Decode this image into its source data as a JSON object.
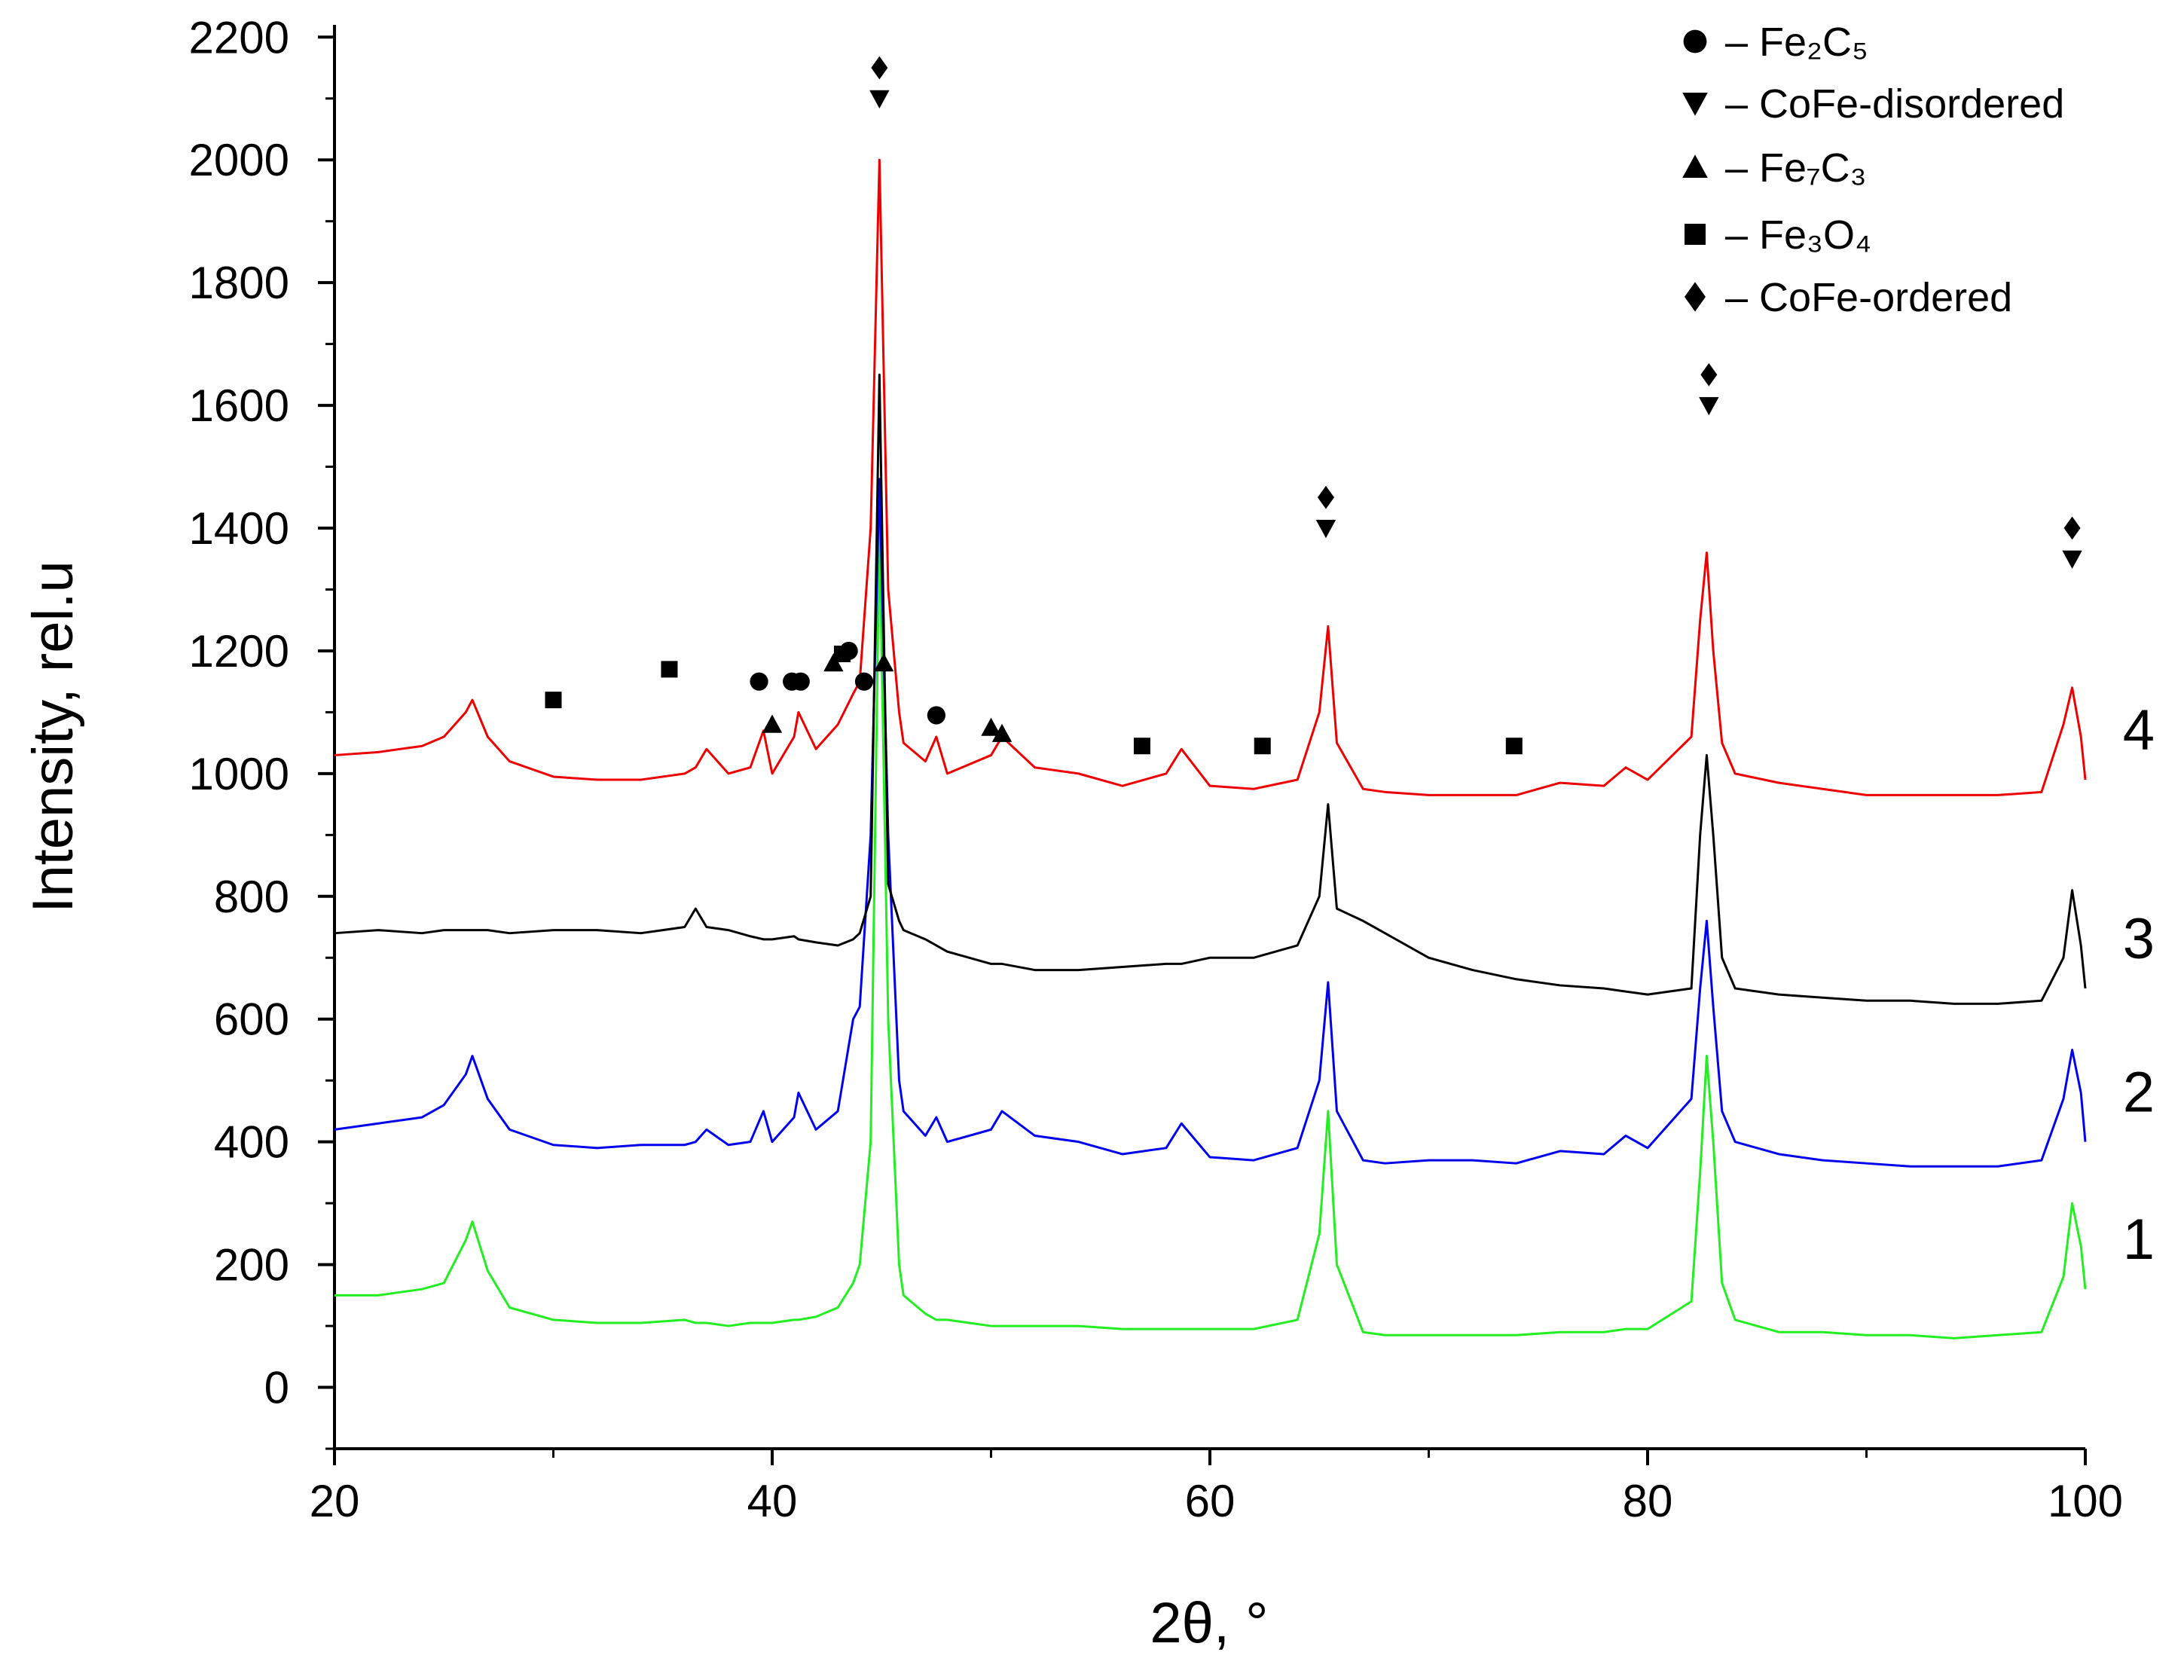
{
  "chart_data": {
    "type": "line",
    "x_label": "2θ, °",
    "y_label": "Intensity, rel.u",
    "xlim": [
      20,
      100
    ],
    "ylim": [
      -100,
      2220
    ],
    "xticks": [
      20,
      40,
      60,
      80,
      100
    ],
    "xminorticks": [
      30,
      50,
      70,
      90
    ],
    "yticks": [
      0,
      200,
      400,
      600,
      800,
      1000,
      1200,
      1400,
      1600,
      1800,
      2000,
      2200
    ],
    "yminorticks": [
      -100,
      100,
      300,
      500,
      700,
      900,
      1100,
      1300,
      1500,
      1700,
      1900,
      2100
    ],
    "x": [
      20,
      22,
      24,
      25,
      26,
      26.3,
      27,
      28,
      30,
      32,
      34,
      36,
      36.5,
      37,
      38,
      39,
      39.6,
      40,
      41,
      41.2,
      42,
      43,
      43.7,
      44,
      44.5,
      44.9,
      45.3,
      45.8,
      46,
      47,
      47.5,
      48,
      50,
      50.5,
      52,
      54,
      56,
      58,
      58.7,
      60,
      62,
      64,
      65,
      65.4,
      65.8,
      67,
      68,
      70,
      72,
      74,
      76,
      78,
      79,
      80,
      82,
      82.4,
      82.7,
      83,
      83.4,
      84,
      86,
      88,
      90,
      92,
      94,
      96,
      98,
      99,
      99.4,
      99.8,
      100
    ],
    "series": [
      {
        "name": "1",
        "color": "#22ee22",
        "values": [
          150,
          150,
          160,
          170,
          240,
          270,
          190,
          130,
          110,
          105,
          105,
          110,
          105,
          105,
          100,
          105,
          105,
          105,
          110,
          110,
          115,
          130,
          170,
          200,
          400,
          1400,
          600,
          200,
          150,
          120,
          110,
          110,
          100,
          100,
          100,
          100,
          95,
          95,
          95,
          95,
          95,
          110,
          250,
          450,
          200,
          90,
          85,
          85,
          85,
          85,
          90,
          90,
          95,
          95,
          140,
          350,
          540,
          400,
          170,
          110,
          90,
          90,
          85,
          85,
          80,
          85,
          90,
          180,
          300,
          230,
          160
        ]
      },
      {
        "name": "2",
        "color": "#0000ee",
        "values": [
          420,
          430,
          440,
          460,
          510,
          540,
          470,
          420,
          395,
          390,
          395,
          395,
          400,
          420,
          395,
          400,
          450,
          400,
          440,
          480,
          420,
          450,
          600,
          620,
          900,
          1480,
          900,
          500,
          450,
          410,
          440,
          400,
          420,
          450,
          410,
          400,
          380,
          390,
          430,
          375,
          370,
          390,
          500,
          660,
          450,
          370,
          365,
          370,
          370,
          365,
          385,
          380,
          410,
          390,
          470,
          650,
          760,
          620,
          450,
          400,
          380,
          370,
          365,
          360,
          360,
          360,
          370,
          470,
          550,
          480,
          400
        ]
      },
      {
        "name": "3",
        "color": "#000000",
        "values": [
          740,
          745,
          740,
          745,
          745,
          745,
          745,
          740,
          745,
          745,
          740,
          750,
          780,
          750,
          745,
          735,
          730,
          730,
          735,
          730,
          725,
          720,
          730,
          740,
          800,
          1650,
          820,
          760,
          745,
          730,
          720,
          710,
          690,
          690,
          680,
          680,
          685,
          690,
          690,
          700,
          700,
          720,
          800,
          950,
          780,
          760,
          740,
          700,
          680,
          665,
          655,
          650,
          645,
          640,
          650,
          900,
          1030,
          900,
          700,
          650,
          640,
          635,
          630,
          630,
          625,
          625,
          630,
          700,
          810,
          720,
          650
        ]
      },
      {
        "name": "4",
        "color": "#ee0000",
        "values": [
          1030,
          1035,
          1045,
          1060,
          1100,
          1120,
          1060,
          1020,
          995,
          990,
          990,
          1000,
          1010,
          1040,
          1000,
          1010,
          1070,
          1000,
          1060,
          1100,
          1040,
          1080,
          1130,
          1150,
          1400,
          2000,
          1300,
          1100,
          1050,
          1020,
          1060,
          1000,
          1030,
          1060,
          1010,
          1000,
          980,
          1000,
          1040,
          980,
          975,
          990,
          1100,
          1240,
          1050,
          975,
          970,
          965,
          965,
          965,
          985,
          980,
          1010,
          990,
          1060,
          1250,
          1360,
          1200,
          1050,
          1000,
          985,
          975,
          965,
          965,
          965,
          965,
          970,
          1080,
          1140,
          1060,
          990
        ]
      }
    ],
    "phases": [
      {
        "symbol": "circle",
        "name": "– Fe₂C₅"
      },
      {
        "symbol": "triangle-down",
        "name": "– CoFe-disordered"
      },
      {
        "symbol": "triangle-up",
        "name": "– Fe₇C₃"
      },
      {
        "symbol": "square",
        "name": "–  Fe₃O₄"
      },
      {
        "symbol": "diamond",
        "name": "–  CoFe-ordered"
      }
    ],
    "markers": [
      {
        "symbol": "diamond",
        "x": 44.9,
        "y": 2150
      },
      {
        "symbol": "triangle-down",
        "x": 44.9,
        "y": 2100
      },
      {
        "symbol": "diamond",
        "x": 65.3,
        "y": 1450
      },
      {
        "symbol": "triangle-down",
        "x": 65.3,
        "y": 1400
      },
      {
        "symbol": "diamond",
        "x": 82.8,
        "y": 1650
      },
      {
        "symbol": "triangle-down",
        "x": 82.8,
        "y": 1600
      },
      {
        "symbol": "diamond",
        "x": 99.4,
        "y": 1400
      },
      {
        "symbol": "triangle-down",
        "x": 99.4,
        "y": 1350
      },
      {
        "symbol": "square",
        "x": 30,
        "y": 1120
      },
      {
        "symbol": "square",
        "x": 35.3,
        "y": 1170
      },
      {
        "symbol": "square",
        "x": 43.2,
        "y": 1195
      },
      {
        "symbol": "square",
        "x": 56.9,
        "y": 1045
      },
      {
        "symbol": "square",
        "x": 62.4,
        "y": 1045
      },
      {
        "symbol": "square",
        "x": 73.9,
        "y": 1045
      },
      {
        "symbol": "circle",
        "x": 39.4,
        "y": 1150
      },
      {
        "symbol": "circle",
        "x": 40.9,
        "y": 1150
      },
      {
        "symbol": "circle",
        "x": 41.3,
        "y": 1150
      },
      {
        "symbol": "circle",
        "x": 43.5,
        "y": 1200
      },
      {
        "symbol": "circle",
        "x": 44.2,
        "y": 1150
      },
      {
        "symbol": "circle",
        "x": 47.5,
        "y": 1095
      },
      {
        "symbol": "triangle-up",
        "x": 40,
        "y": 1080
      },
      {
        "symbol": "triangle-up",
        "x": 42.8,
        "y": 1180
      },
      {
        "symbol": "triangle-up",
        "x": 45.1,
        "y": 1180
      },
      {
        "symbol": "triangle-up",
        "x": 50,
        "y": 1075
      },
      {
        "symbol": "triangle-up",
        "x": 50.5,
        "y": 1065
      }
    ]
  }
}
